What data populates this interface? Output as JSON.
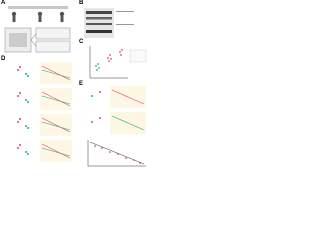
{
  "panels": {
    "a": "A",
    "b": "B",
    "c": "C",
    "d": "D",
    "e": "E"
  }
}
